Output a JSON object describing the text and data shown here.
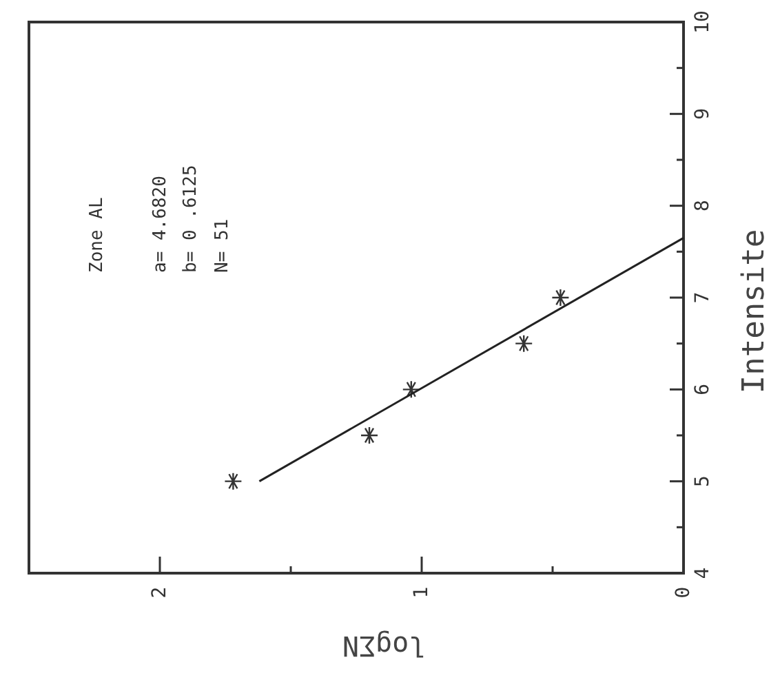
{
  "chart_data": {
    "type": "scatter",
    "xlabel": "logΣN",
    "ylabel": "Intensite",
    "annotations": [
      "Zone AL",
      "a= 4.6820",
      "b= 0 .6125",
      "N= 51"
    ],
    "xlim": [
      2.5,
      0
    ],
    "xticks": [
      2,
      {
        "value": 1.5,
        "label": null
      },
      1,
      {
        "value": 0.5,
        "label": null
      },
      0
    ],
    "ylim": [
      4,
      10
    ],
    "yticks": [
      4,
      {
        "value": 4.5,
        "label": null
      },
      5,
      {
        "value": 5.5,
        "label": null
      },
      6,
      {
        "value": 6.5,
        "label": null
      },
      7,
      {
        "value": 7.5,
        "label": null
      },
      8,
      {
        "value": 8.5,
        "label": null
      },
      9,
      {
        "value": 9.5,
        "label": null
      },
      10
    ],
    "grid": false,
    "series": [
      {
        "color": "#333333",
        "marker": "cross",
        "x": [
          1.72,
          1.2,
          1.04,
          0.61,
          0.47
        ],
        "values": [
          5,
          5.5,
          6,
          6.5,
          7
        ]
      },
      {
        "type": "line",
        "color": "#222222",
        "line_style": "solid",
        "x": [
          1.62,
          0
        ],
        "values": [
          5,
          7.65
        ]
      }
    ]
  }
}
